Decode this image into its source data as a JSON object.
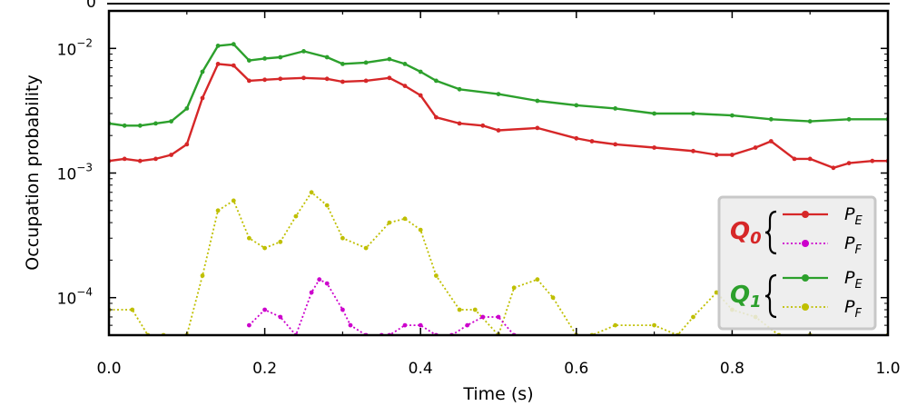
{
  "chart_data": {
    "type": "line",
    "xlabel": "Time (s)",
    "ylabel": "Occupation probability",
    "xlim": [
      0.0,
      1.0
    ],
    "ylim": [
      5e-05,
      0.02
    ],
    "yscale": "log",
    "x_ticks": [
      "0.0",
      "0.2",
      "0.4",
      "0.6",
      "0.8",
      "1.0"
    ],
    "x_tick_values": [
      0.0,
      0.2,
      0.4,
      0.6,
      0.8,
      1.0
    ],
    "y_ticks": [
      {
        "value": 0.01,
        "base": "10",
        "exp": "−2"
      },
      {
        "value": 0.001,
        "base": "10",
        "exp": "−3"
      },
      {
        "value": 0.0001,
        "base": "10",
        "exp": "−4"
      }
    ],
    "legend": {
      "placement": "bottom-right",
      "groups": [
        {
          "qubit": "Q",
          "sub": "0",
          "color": "#d62728",
          "entries": [
            {
              "label": "P",
              "sub": "E",
              "color": "#d62728",
              "style": "solid"
            },
            {
              "label": "P",
              "sub": "F",
              "color": "#cc00cc",
              "style": "dotted"
            }
          ]
        },
        {
          "qubit": "Q",
          "sub": "1",
          "color": "#2ca02c",
          "entries": [
            {
              "label": "P",
              "sub": "E",
              "color": "#2ca02c",
              "style": "solid"
            },
            {
              "label": "P",
              "sub": "F",
              "color": "#bfbf00",
              "style": "dotted"
            }
          ]
        }
      ]
    },
    "series": [
      {
        "qubit": "Q0",
        "state": "PE",
        "color": "#d62728",
        "style": "solid",
        "x": [
          0.0,
          0.02,
          0.04,
          0.06,
          0.08,
          0.1,
          0.12,
          0.14,
          0.16,
          0.18,
          0.2,
          0.22,
          0.25,
          0.28,
          0.3,
          0.33,
          0.36,
          0.38,
          0.4,
          0.42,
          0.45,
          0.48,
          0.5,
          0.55,
          0.6,
          0.62,
          0.65,
          0.7,
          0.75,
          0.78,
          0.8,
          0.83,
          0.85,
          0.88,
          0.9,
          0.93,
          0.95,
          0.98,
          1.0
        ],
        "y": [
          0.00125,
          0.0013,
          0.00125,
          0.0013,
          0.0014,
          0.0017,
          0.004,
          0.0075,
          0.0073,
          0.0055,
          0.0056,
          0.0057,
          0.0058,
          0.0057,
          0.0054,
          0.0055,
          0.0058,
          0.005,
          0.0042,
          0.0028,
          0.0025,
          0.0024,
          0.0022,
          0.0023,
          0.0019,
          0.0018,
          0.0017,
          0.0016,
          0.0015,
          0.0014,
          0.0014,
          0.0016,
          0.0018,
          0.0013,
          0.0013,
          0.0011,
          0.0012,
          0.00125,
          0.00125
        ]
      },
      {
        "qubit": "Q1",
        "state": "PE",
        "color": "#2ca02c",
        "style": "solid",
        "x": [
          0.0,
          0.02,
          0.04,
          0.06,
          0.08,
          0.1,
          0.12,
          0.14,
          0.16,
          0.18,
          0.2,
          0.22,
          0.25,
          0.28,
          0.3,
          0.33,
          0.36,
          0.38,
          0.4,
          0.42,
          0.45,
          0.5,
          0.55,
          0.6,
          0.65,
          0.7,
          0.75,
          0.8,
          0.85,
          0.9,
          0.95,
          1.0
        ],
        "y": [
          0.0025,
          0.0024,
          0.0024,
          0.0025,
          0.0026,
          0.0033,
          0.0065,
          0.0105,
          0.0108,
          0.008,
          0.0083,
          0.0085,
          0.0095,
          0.0085,
          0.0075,
          0.0077,
          0.0082,
          0.0075,
          0.0065,
          0.0055,
          0.0047,
          0.0043,
          0.0038,
          0.0035,
          0.0033,
          0.003,
          0.003,
          0.0029,
          0.0027,
          0.0026,
          0.0027,
          0.0027
        ]
      },
      {
        "qubit": "Q1",
        "state": "PF",
        "color": "#bfbf00",
        "style": "dotted",
        "x": [
          0.0,
          0.03,
          0.05,
          0.07,
          0.1,
          0.12,
          0.14,
          0.16,
          0.18,
          0.2,
          0.22,
          0.24,
          0.26,
          0.28,
          0.3,
          0.33,
          0.36,
          0.38,
          0.4,
          0.42,
          0.45,
          0.47,
          0.5,
          0.52,
          0.55,
          0.57,
          0.6,
          0.62,
          0.65,
          0.7,
          0.73,
          0.75,
          0.78,
          0.8,
          0.83,
          0.86,
          0.9,
          1.0
        ],
        "y": [
          8e-05,
          8e-05,
          5e-05,
          5e-05,
          5e-05,
          0.00015,
          0.0005,
          0.0006,
          0.0003,
          0.00025,
          0.00028,
          0.00045,
          0.0007,
          0.00055,
          0.0003,
          0.00025,
          0.0004,
          0.00043,
          0.00035,
          0.00015,
          8e-05,
          8e-05,
          5e-05,
          0.00012,
          0.00014,
          0.0001,
          5e-05,
          5e-05,
          6e-05,
          6e-05,
          5e-05,
          7e-05,
          0.00011,
          8e-05,
          7e-05,
          5e-05,
          5e-05,
          5e-05
        ]
      },
      {
        "qubit": "Q0",
        "state": "PF",
        "color": "#cc00cc",
        "style": "dotted",
        "x": [
          0.18,
          0.2,
          0.22,
          0.24,
          0.26,
          0.27,
          0.28,
          0.3,
          0.31,
          0.33,
          0.35,
          0.36,
          0.38,
          0.4,
          0.42,
          0.44,
          0.46,
          0.48,
          0.5,
          0.52
        ],
        "y": [
          6e-05,
          8e-05,
          7e-05,
          5e-05,
          0.00011,
          0.00014,
          0.00013,
          8e-05,
          6e-05,
          5e-05,
          5e-05,
          5e-05,
          6e-05,
          6e-05,
          5e-05,
          5e-05,
          6e-05,
          7e-05,
          7e-05,
          5e-05
        ]
      }
    ]
  }
}
